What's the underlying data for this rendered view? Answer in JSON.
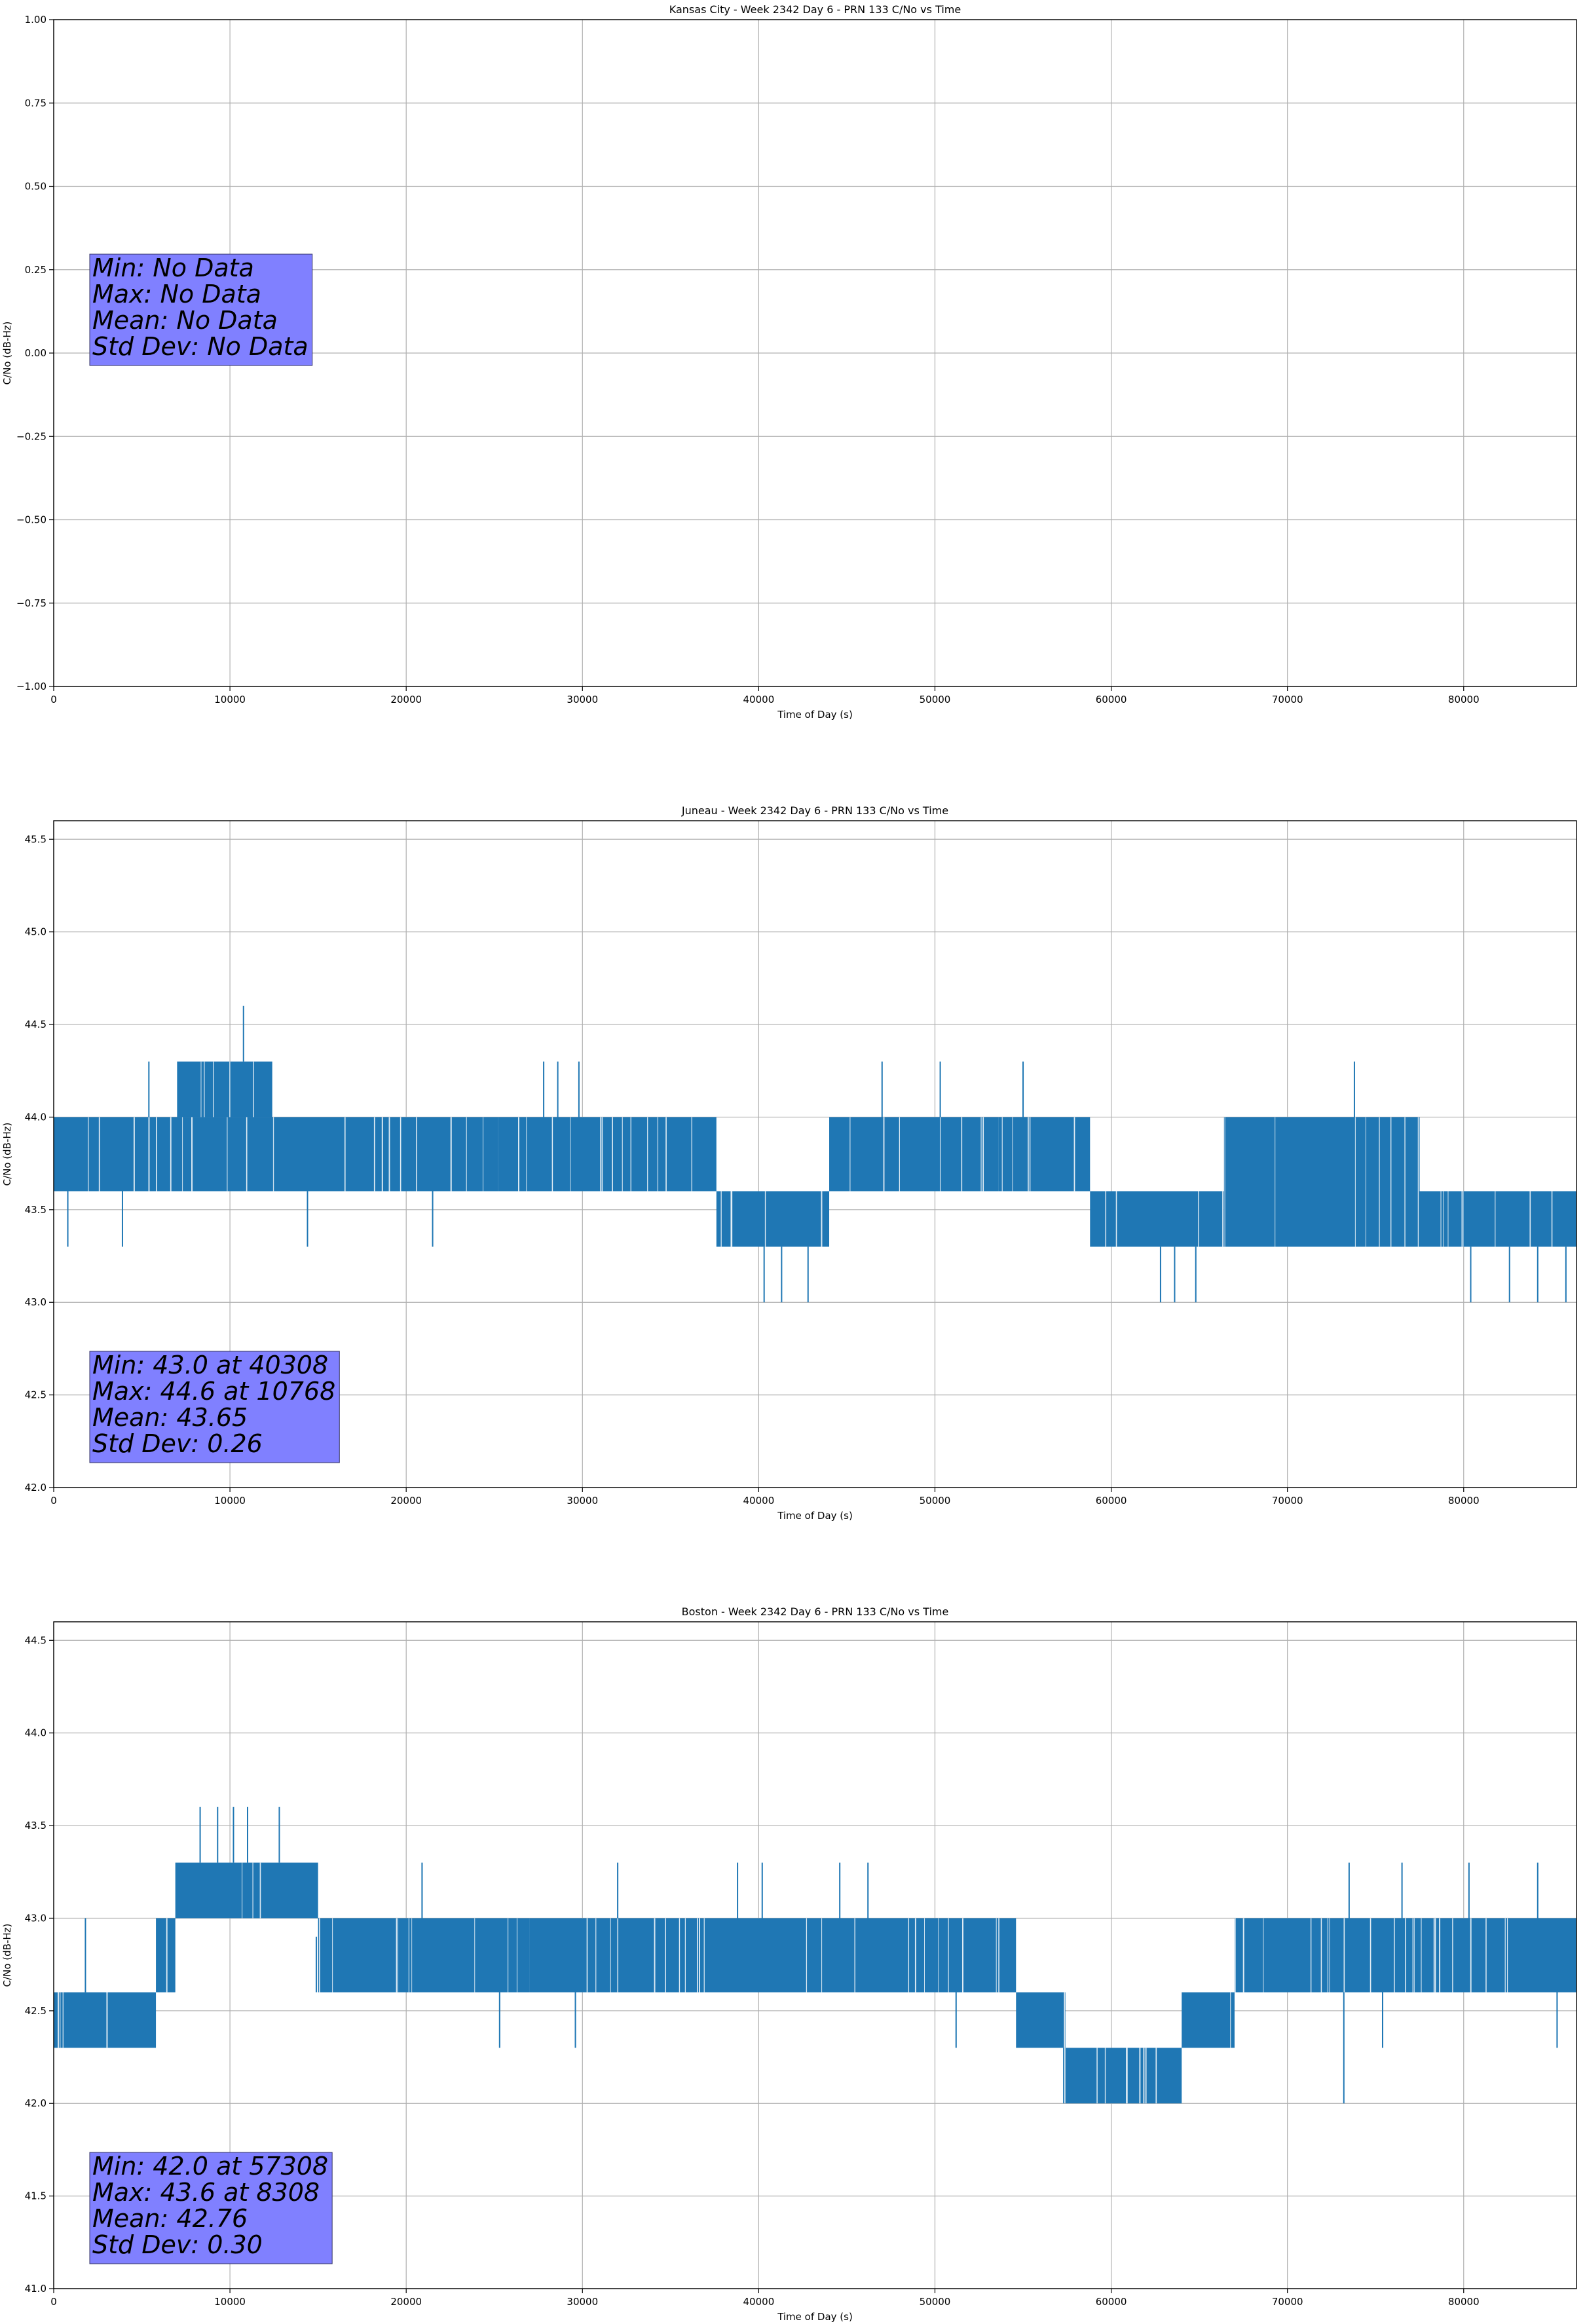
{
  "figure": {
    "background": "#ffffff",
    "series_color": "#1f77b4",
    "stats_box_color": "#8080ff",
    "grid_color": "#b0b0b0"
  },
  "chart_data": [
    {
      "type": "line",
      "title": "Kansas City - Week 2342 Day 6 - PRN 133 C/No vs Time",
      "xlabel": "Time of Day (s)",
      "ylabel": "C/No (dB-Hz)",
      "xlim": [
        0,
        86400
      ],
      "ylim": [
        -1.0,
        1.0
      ],
      "xticks": [
        0,
        10000,
        20000,
        30000,
        40000,
        50000,
        60000,
        70000,
        80000
      ],
      "yticks": [
        -1.0,
        -0.75,
        -0.5,
        -0.25,
        0.0,
        0.25,
        0.5,
        0.75,
        1.0
      ],
      "ytick_labels": [
        "−1.00",
        "−0.75",
        "−0.50",
        "−0.25",
        "0.00",
        "0.25",
        "0.50",
        "0.75",
        "1.00"
      ],
      "grid": true,
      "stats": [
        "Min: No Data",
        "Max: No Data",
        "Mean: No Data",
        "Std Dev: No Data"
      ],
      "series": []
    },
    {
      "type": "line",
      "title": "Juneau - Week 2342 Day 6 - PRN 133 C/No vs Time",
      "xlabel": "Time of Day (s)",
      "ylabel": "C/No (dB-Hz)",
      "xlim": [
        0,
        86400
      ],
      "ylim": [
        42.0,
        45.6
      ],
      "xticks": [
        0,
        10000,
        20000,
        30000,
        40000,
        50000,
        60000,
        70000,
        80000
      ],
      "yticks": [
        42.0,
        42.5,
        43.0,
        43.5,
        44.0,
        44.5,
        45.0,
        45.5
      ],
      "ytick_labels": [
        "42.0",
        "42.5",
        "43.0",
        "43.5",
        "44.0",
        "44.5",
        "45.0",
        "45.5"
      ],
      "grid": true,
      "stats": [
        "Min: 43.0 at 40308",
        "Max: 44.6 at 10768",
        "Mean: 43.65",
        "Std Dev: 0.26"
      ],
      "series": [
        {
          "name": "C/No",
          "segments": [
            {
              "x0": 0,
              "x1": 12400,
              "band": [
                43.6,
                44.0
              ]
            },
            {
              "x0": 7000,
              "x1": 12400,
              "band": [
                44.0,
                44.3
              ]
            },
            {
              "x0": 12400,
              "x1": 25200,
              "band": [
                43.6,
                44.0
              ]
            },
            {
              "x0": 25200,
              "x1": 37600,
              "band": [
                43.6,
                44.0
              ]
            },
            {
              "x0": 37600,
              "x1": 44000,
              "band": [
                43.3,
                43.6
              ]
            },
            {
              "x0": 44000,
              "x1": 53600,
              "band": [
                43.6,
                44.0
              ]
            },
            {
              "x0": 53600,
              "x1": 58800,
              "band": [
                43.6,
                44.0
              ]
            },
            {
              "x0": 58800,
              "x1": 66400,
              "band": [
                43.3,
                43.6
              ]
            },
            {
              "x0": 66400,
              "x1": 77500,
              "band": [
                43.3,
                44.0
              ]
            },
            {
              "x0": 77500,
              "x1": 86400,
              "band": [
                43.3,
                43.6
              ]
            }
          ],
          "spikes": [
            {
              "x": 10768,
              "y0": 44.3,
              "y1": 44.6
            },
            {
              "x": 40308,
              "y0": 43.3,
              "y1": 43.0
            },
            {
              "x": 41300,
              "y0": 43.3,
              "y1": 43.0
            },
            {
              "x": 42800,
              "y0": 43.3,
              "y1": 43.0
            },
            {
              "x": 47000,
              "y0": 44.0,
              "y1": 44.3
            },
            {
              "x": 50300,
              "y0": 44.0,
              "y1": 44.3
            },
            {
              "x": 55000,
              "y0": 44.0,
              "y1": 44.3
            },
            {
              "x": 27800,
              "y0": 44.0,
              "y1": 44.3
            },
            {
              "x": 28600,
              "y0": 44.0,
              "y1": 44.3
            },
            {
              "x": 29800,
              "y0": 44.0,
              "y1": 44.3
            },
            {
              "x": 5400,
              "y0": 44.0,
              "y1": 44.3
            },
            {
              "x": 73800,
              "y0": 44.0,
              "y1": 44.3
            },
            {
              "x": 62800,
              "y0": 43.3,
              "y1": 43.0
            },
            {
              "x": 63600,
              "y0": 43.3,
              "y1": 43.0
            },
            {
              "x": 64800,
              "y0": 43.3,
              "y1": 43.0
            },
            {
              "x": 80400,
              "y0": 43.3,
              "y1": 43.0
            },
            {
              "x": 82600,
              "y0": 43.3,
              "y1": 43.0
            },
            {
              "x": 84200,
              "y0": 43.3,
              "y1": 43.0
            },
            {
              "x": 85800,
              "y0": 43.3,
              "y1": 43.0
            },
            {
              "x": 800,
              "y0": 43.6,
              "y1": 43.3
            },
            {
              "x": 3900,
              "y0": 43.6,
              "y1": 43.3
            },
            {
              "x": 14400,
              "y0": 43.6,
              "y1": 43.3
            },
            {
              "x": 21500,
              "y0": 43.6,
              "y1": 43.3
            }
          ]
        }
      ]
    },
    {
      "type": "line",
      "title": "Boston - Week 2342 Day 6 - PRN 133 C/No vs Time",
      "xlabel": "Time of Day (s)",
      "ylabel": "C/No (dB-Hz)",
      "xlim": [
        0,
        86400
      ],
      "ylim": [
        41.0,
        44.6
      ],
      "xticks": [
        0,
        10000,
        20000,
        30000,
        40000,
        50000,
        60000,
        70000,
        80000
      ],
      "yticks": [
        41.0,
        41.5,
        42.0,
        42.5,
        43.0,
        43.5,
        44.0,
        44.5
      ],
      "ytick_labels": [
        "41.0",
        "41.5",
        "42.0",
        "42.5",
        "43.0",
        "43.5",
        "44.0",
        "44.5"
      ],
      "grid": true,
      "stats": [
        "Min: 42.0 at 57308",
        "Max: 43.6 at 8308",
        "Mean: 42.76",
        "Std Dev: 0.30"
      ],
      "series": [
        {
          "name": "C/No",
          "segments": [
            {
              "x0": 0,
              "x1": 5800,
              "band": [
                42.3,
                42.6
              ]
            },
            {
              "x0": 5800,
              "x1": 6900,
              "band": [
                42.6,
                43.0
              ]
            },
            {
              "x0": 6900,
              "x1": 15000,
              "band": [
                43.0,
                43.3
              ]
            },
            {
              "x0": 15000,
              "x1": 27000,
              "band": [
                42.6,
                43.0
              ]
            },
            {
              "x0": 27000,
              "x1": 54600,
              "band": [
                42.6,
                43.0
              ]
            },
            {
              "x0": 54600,
              "x1": 57400,
              "band": [
                42.3,
                42.6
              ]
            },
            {
              "x0": 57400,
              "x1": 64000,
              "band": [
                42.0,
                42.3
              ]
            },
            {
              "x0": 64000,
              "x1": 67000,
              "band": [
                42.3,
                42.6
              ]
            },
            {
              "x0": 67000,
              "x1": 86400,
              "band": [
                42.6,
                43.0
              ]
            }
          ],
          "spikes": [
            {
              "x": 8308,
              "y0": 43.3,
              "y1": 43.6
            },
            {
              "x": 9300,
              "y0": 43.3,
              "y1": 43.6
            },
            {
              "x": 10200,
              "y0": 43.3,
              "y1": 43.6
            },
            {
              "x": 11000,
              "y0": 43.3,
              "y1": 43.6
            },
            {
              "x": 12800,
              "y0": 43.3,
              "y1": 43.6
            },
            {
              "x": 20900,
              "y0": 43.0,
              "y1": 43.3
            },
            {
              "x": 32000,
              "y0": 43.0,
              "y1": 43.3
            },
            {
              "x": 38800,
              "y0": 43.0,
              "y1": 43.3
            },
            {
              "x": 40200,
              "y0": 43.0,
              "y1": 43.3
            },
            {
              "x": 44600,
              "y0": 43.0,
              "y1": 43.3
            },
            {
              "x": 46200,
              "y0": 43.0,
              "y1": 43.3
            },
            {
              "x": 73500,
              "y0": 43.0,
              "y1": 43.3
            },
            {
              "x": 76500,
              "y0": 43.0,
              "y1": 43.3
            },
            {
              "x": 80300,
              "y0": 43.0,
              "y1": 43.3
            },
            {
              "x": 84200,
              "y0": 43.0,
              "y1": 43.3
            },
            {
              "x": 57308,
              "y0": 42.3,
              "y1": 42.0
            },
            {
              "x": 73200,
              "y0": 42.6,
              "y1": 42.0
            },
            {
              "x": 25300,
              "y0": 42.6,
              "y1": 42.3
            },
            {
              "x": 29600,
              "y0": 42.6,
              "y1": 42.3
            },
            {
              "x": 51200,
              "y0": 42.6,
              "y1": 42.3
            },
            {
              "x": 75400,
              "y0": 42.6,
              "y1": 42.3
            },
            {
              "x": 85300,
              "y0": 42.6,
              "y1": 42.3
            },
            {
              "x": 1800,
              "y0": 42.6,
              "y1": 43.0
            },
            {
              "x": 14900,
              "y0": 42.6,
              "y1": 42.9
            }
          ]
        }
      ]
    }
  ]
}
